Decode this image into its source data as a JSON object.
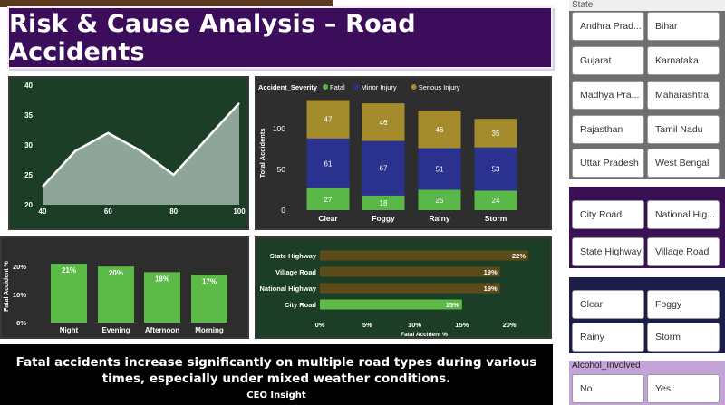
{
  "title": "Risk & Cause Analysis – Road Accidents",
  "area_chart": {
    "type": "area",
    "x": [
      40,
      50,
      60,
      70,
      80,
      90,
      100
    ],
    "y": [
      23,
      29,
      32,
      29,
      25,
      31,
      37
    ],
    "xticks": [
      "40",
      "60",
      "80",
      "100"
    ],
    "yticks": [
      "20",
      "25",
      "30",
      "35",
      "40"
    ],
    "xlim": [
      40,
      100
    ],
    "ylim": [
      20,
      40
    ],
    "colors": {
      "fill": "#8fa59a",
      "line": "#ffffff",
      "background": "#1d3e26"
    }
  },
  "stacked_chart": {
    "type": "bar",
    "legend_title": "Accident_Severity",
    "ylabel": "Total Accidents",
    "categories": [
      "Clear",
      "Foggy",
      "Rainy",
      "Storm"
    ],
    "series": [
      {
        "name": "Fatal",
        "values": [
          27,
          18,
          25,
          24
        ],
        "color": "#59b848"
      },
      {
        "name": "Minor Injury",
        "values": [
          61,
          67,
          51,
          53
        ],
        "color": "#2b318f"
      },
      {
        "name": "Serious Injury",
        "values": [
          47,
          46,
          46,
          35
        ],
        "color": "#a48c2c"
      }
    ],
    "yticks": [
      "0",
      "50",
      "100"
    ],
    "ylim": [
      0,
      140
    ]
  },
  "time_chart": {
    "type": "bar",
    "ylabel": "Fatal Accident %",
    "categories": [
      "Night",
      "Evening",
      "Afternoon",
      "Morning"
    ],
    "values": [
      21,
      20,
      18,
      17
    ],
    "labels": [
      "21%",
      "20%",
      "18%",
      "17%"
    ],
    "yticks": [
      "0%",
      "10%",
      "20%"
    ],
    "ylim": [
      0,
      22
    ],
    "colors": {
      "bar": "#5cba47"
    }
  },
  "road_chart": {
    "type": "bar",
    "orientation": "horizontal",
    "xlabel": "Fatal Accident %",
    "categories": [
      "State Highway",
      "Village Road",
      "National Highway",
      "City Road"
    ],
    "values": [
      22,
      19,
      19,
      15
    ],
    "labels": [
      "22%",
      "19%",
      "19%",
      "15%"
    ],
    "xticks": [
      "0%",
      "5%",
      "10%",
      "15%",
      "20%"
    ],
    "xlim": [
      0,
      22
    ],
    "colors": {
      "highlight": "#5cba47",
      "muted": "#5c4a19"
    }
  },
  "insight": {
    "message": "Fatal accidents increase significantly on multiple road types during various times, especially under mixed weather conditions.",
    "author": "CEO Insight"
  },
  "slicers": {
    "state": {
      "label": "State",
      "items": [
        "Andhra Prad...",
        "Bihar",
        "Gujarat",
        "Karnataka",
        "Madhya Pra...",
        "Maharashtra",
        "Rajasthan",
        "Tamil Nadu",
        "Uttar Pradesh",
        "West Bengal"
      ]
    },
    "road_type": {
      "items": [
        "City Road",
        "National Hig...",
        "State Highway",
        "Village Road"
      ]
    },
    "weather": {
      "items": [
        "Clear",
        "Foggy",
        "Rainy",
        "Storm"
      ]
    },
    "alcohol": {
      "label": "Alcohol_Involved",
      "items": [
        "No",
        "Yes"
      ]
    }
  }
}
